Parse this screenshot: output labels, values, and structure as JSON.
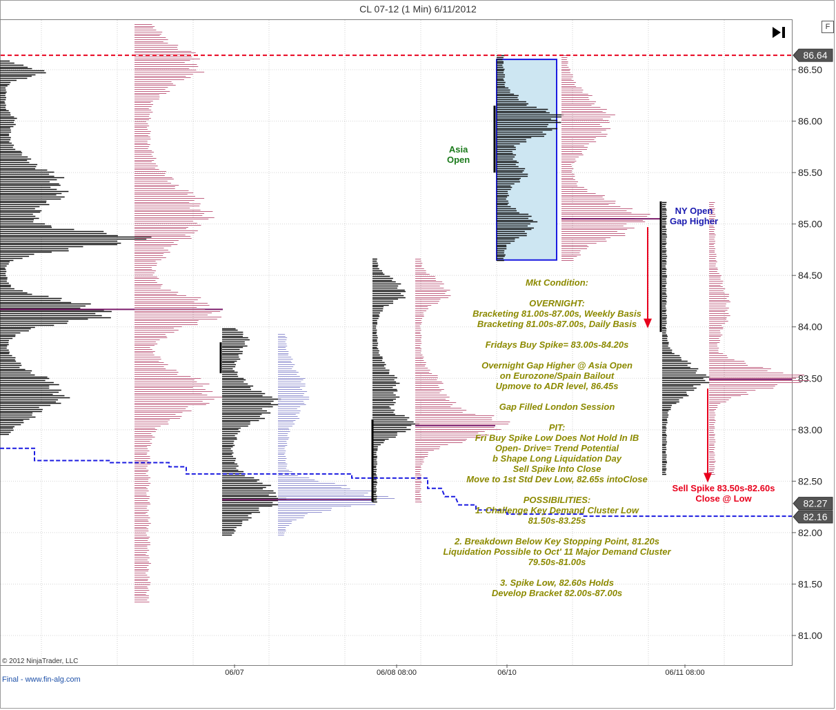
{
  "header": {
    "title": "CL 07-12 (1 Min)  6/11/2012",
    "f_button": "F"
  },
  "footer": {
    "copyright": "© 2012 NinjaTrader, LLC",
    "source": "Final - www.fin-alg.com"
  },
  "chart_data": {
    "type": "market-profile",
    "title": "CL 07-12 (1 Min)  6/11/2012",
    "y_axis": {
      "ylim": [
        80.75,
        87.0
      ],
      "ticks": [
        "86.50",
        "86.00",
        "85.50",
        "85.00",
        "84.50",
        "84.00",
        "83.50",
        "83.00",
        "82.50",
        "82.00",
        "81.50",
        "81.00"
      ]
    },
    "x_labels": [
      "06/07",
      "06/08 08:00",
      "06/10",
      "06/11 08:00"
    ],
    "price_markers": [
      {
        "label": "86.64",
        "value": 86.64,
        "color": "#555555"
      },
      {
        "label": "82.27",
        "value": 82.27,
        "color": "#555555"
      },
      {
        "label": "82.16",
        "value": 82.16,
        "color": "#555555"
      }
    ],
    "reference_line": {
      "value": 86.64,
      "style": "dashed",
      "color": "#e8001c"
    },
    "stepped_line": {
      "color": "#1a1ae0",
      "points": [
        [
          0,
          82.82
        ],
        [
          50,
          82.82
        ],
        [
          50,
          82.7
        ],
        [
          160,
          82.7
        ],
        [
          160,
          82.68
        ],
        [
          245,
          82.68
        ],
        [
          245,
          82.64
        ],
        [
          270,
          82.64
        ],
        [
          270,
          82.57
        ],
        [
          365,
          82.57
        ],
        [
          365,
          82.57
        ],
        [
          510,
          82.57
        ],
        [
          510,
          82.53
        ],
        [
          600,
          82.53
        ],
        [
          620,
          82.53
        ],
        [
          620,
          82.43
        ],
        [
          640,
          82.43
        ],
        [
          645,
          82.35
        ],
        [
          660,
          82.35
        ],
        [
          665,
          82.27
        ],
        [
          690,
          82.27
        ],
        [
          690,
          82.22
        ],
        [
          735,
          82.22
        ],
        [
          735,
          82.18
        ],
        [
          845,
          82.18
        ],
        [
          845,
          82.16
        ],
        [
          1148,
          82.16
        ]
      ]
    },
    "profiles": [
      {
        "side": "left",
        "anchor": 0,
        "color": "#111111",
        "lo": 82.96,
        "hi": 86.6,
        "nodes": [
          [
            86.48,
            50,
            0.08
          ],
          [
            86.0,
            15,
            0.08
          ],
          [
            85.35,
            80,
            0.3
          ],
          [
            84.85,
            180,
            0.12
          ],
          [
            84.15,
            145,
            0.15
          ],
          [
            83.35,
            80,
            0.25
          ]
        ],
        "base": 8,
        "poc": {
          "value": 84.17,
          "x2": 323
        }
      },
      {
        "side": "left",
        "anchor": 195,
        "color": "#c06080",
        "lo": 81.33,
        "hi": 86.95,
        "nodes": [
          [
            86.55,
            70,
            0.25
          ],
          [
            85.1,
            80,
            0.35
          ],
          [
            84.15,
            95,
            0.2
          ],
          [
            83.35,
            90,
            0.25
          ]
        ],
        "base": 20
      },
      {
        "side": "left",
        "anchor": 322,
        "color": "#111111",
        "lo": 81.98,
        "hi": 84.0,
        "nodes": [
          [
            83.85,
            20,
            0.15
          ],
          [
            83.25,
            60,
            0.2
          ],
          [
            82.35,
            65,
            0.2
          ]
        ],
        "base": 15,
        "poc": {
          "value": 82.32,
          "x2": 540
        }
      },
      {
        "side": "left",
        "anchor": 403,
        "color": "#9090d0",
        "lo": 81.98,
        "hi": 83.95,
        "nodes": [
          [
            83.35,
            30,
            0.3
          ],
          [
            82.35,
            140,
            0.15
          ]
        ],
        "base": 10
      },
      {
        "side": "left",
        "anchor": 540,
        "color": "#111111",
        "lo": 82.3,
        "hi": 84.67,
        "nodes": [
          [
            84.35,
            40,
            0.15
          ],
          [
            83.4,
            30,
            0.25
          ],
          [
            83.04,
            50,
            0.12
          ]
        ],
        "base": 6
      },
      {
        "side": "left",
        "anchor": 602,
        "color": "#c06080",
        "lo": 82.3,
        "hi": 84.67,
        "nodes": [
          [
            84.35,
            40,
            0.15
          ],
          [
            83.04,
            115,
            0.18
          ],
          [
            83.4,
            30,
            0.2
          ]
        ],
        "base": 8,
        "poc": {
          "value": 83.04,
          "x2": 718
        }
      },
      {
        "side": "left",
        "anchor": 720,
        "color": "#111111",
        "lo": 84.65,
        "hi": 86.64,
        "nodes": [
          [
            86.0,
            80,
            0.2
          ],
          [
            85.0,
            45,
            0.15
          ],
          [
            85.5,
            30,
            0.15
          ]
        ],
        "base": 10
      },
      {
        "side": "left",
        "anchor": 814,
        "color": "#c06080",
        "lo": 84.65,
        "hi": 86.64,
        "nodes": [
          [
            85.05,
            105,
            0.25
          ],
          [
            86.0,
            60,
            0.3
          ]
        ],
        "base": 8,
        "poc": {
          "value": 85.05,
          "x2": 958
        }
      },
      {
        "side": "left",
        "anchor": 960,
        "color": "#111111",
        "lo": 82.57,
        "hi": 85.22,
        "nodes": [
          [
            83.5,
            55,
            0.2
          ]
        ],
        "base": 6
      },
      {
        "side": "left",
        "anchor": 1028,
        "color": "#c06080",
        "lo": 82.57,
        "hi": 85.22,
        "nodes": [
          [
            83.5,
            120,
            0.15
          ],
          [
            84.2,
            20,
            0.3
          ]
        ],
        "base": 8,
        "poc": {
          "value": 83.49,
          "x2": 1148
        }
      }
    ],
    "asia_box": {
      "hi": 86.6,
      "lo": 84.65,
      "fill": "#cde6f2",
      "border": "#1a1ae0"
    },
    "arrows": [
      {
        "value_from": 84.97,
        "value_to": 84.0,
        "color": "#e8001c"
      },
      {
        "value_from": 83.4,
        "value_to": 82.5,
        "color": "#e8001c"
      }
    ],
    "annotations": {
      "asia_open": [
        "Asia",
        "Open"
      ],
      "ny_open": [
        "NY Open",
        "Gap Higher"
      ],
      "sell_spike": [
        "Sell Spike 83.50s-82.60s",
        "Close @ Low"
      ]
    },
    "market_condition": [
      "Mkt Condition:",
      "",
      "OVERNIGHT:",
      "Bracketing 81.00s-87.00s, Weekly Basis",
      "Bracketing  81.00s-87.00s, Daily Basis",
      "",
      "Fridays Buy Spike= 83.00s-84.20s",
      "",
      "Overnight Gap Higher @ Asia Open",
      "on Eurozone/Spain Bailout",
      "Upmove to ADR level, 86.45s",
      "",
      "Gap Filled London Session",
      "",
      "PIT:",
      "Fri Buy Spike Low Does Not Hold In IB",
      "Open- Drive= Trend Potential",
      "b Shape Long Liquidation Day",
      "Sell Spike Into Close",
      "Move to 1st Std Dev Low, 82.65s intoClose",
      "",
      "POSSIBILITIES:",
      "1. Challenge Key Demand Cluster Low",
      "81.50s-83.25s",
      "",
      "2. Breakdown Below Key Stopping Point, 81.20s",
      "Liquidation Possible to Oct' 11 Major Demand Cluster",
      "79.50s-81.00s",
      "",
      "3. Spike Low, 82.60s Holds",
      "Develop Bracket 82.00s-87.00s"
    ]
  }
}
